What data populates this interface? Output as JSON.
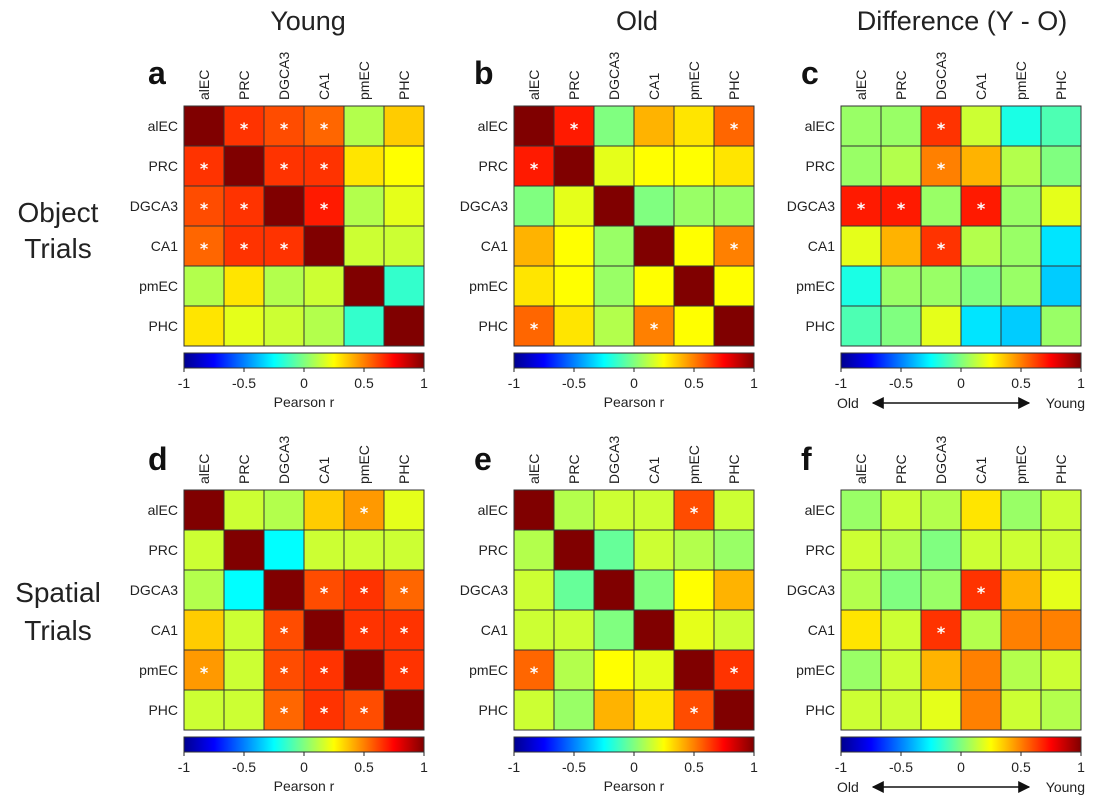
{
  "column_titles": [
    "Young",
    "Old",
    "Difference (Y - O)"
  ],
  "row_titles": [
    [
      "Object",
      "Trials"
    ],
    [
      "Spatial",
      "Trials"
    ]
  ],
  "colors": {
    "grid_line": "#333333",
    "star": "#ffffff"
  },
  "chart_data": [
    {
      "type": "heatmap",
      "panel": "a",
      "x_categories": [
        "alEC",
        "PRC",
        "DGCA3",
        "CA1",
        "pmEC",
        "PHC"
      ],
      "y_categories": [
        "alEC",
        "PRC",
        "DGCA3",
        "CA1",
        "pmEC",
        "PHC"
      ],
      "values": [
        [
          1.0,
          0.65,
          0.6,
          0.55,
          0.1,
          0.35
        ],
        [
          0.65,
          1.0,
          0.65,
          0.65,
          0.3,
          0.25
        ],
        [
          0.6,
          0.65,
          1.0,
          0.7,
          0.1,
          0.2
        ],
        [
          0.55,
          0.65,
          0.65,
          1.0,
          0.15,
          0.15
        ],
        [
          0.1,
          0.3,
          0.1,
          0.15,
          1.0,
          -0.15
        ],
        [
          0.3,
          0.2,
          0.15,
          0.1,
          -0.15,
          1.0
        ]
      ],
      "significant": [
        [
          0,
          1
        ],
        [
          0,
          2
        ],
        [
          0,
          3
        ],
        [
          1,
          0
        ],
        [
          1,
          2
        ],
        [
          1,
          3
        ],
        [
          2,
          0
        ],
        [
          2,
          1
        ],
        [
          2,
          3
        ],
        [
          3,
          0
        ],
        [
          3,
          1
        ],
        [
          3,
          2
        ]
      ],
      "colorbar": {
        "range": [
          -1,
          1
        ],
        "ticks": [
          "-1",
          "-0.5",
          "0",
          "0.5",
          "1"
        ],
        "label": "Pearson r"
      }
    },
    {
      "type": "heatmap",
      "panel": "b",
      "x_categories": [
        "alEC",
        "PRC",
        "DGCA3",
        "CA1",
        "pmEC",
        "PHC"
      ],
      "y_categories": [
        "alEC",
        "PRC",
        "DGCA3",
        "CA1",
        "pmEC",
        "PHC"
      ],
      "values": [
        [
          1.0,
          0.7,
          0.0,
          0.4,
          0.3,
          0.55
        ],
        [
          0.7,
          1.0,
          0.2,
          0.25,
          0.25,
          0.3
        ],
        [
          0.0,
          0.2,
          1.0,
          0.0,
          0.05,
          0.05
        ],
        [
          0.4,
          0.25,
          0.05,
          1.0,
          0.25,
          0.5
        ],
        [
          0.3,
          0.25,
          0.05,
          0.25,
          1.0,
          0.25
        ],
        [
          0.55,
          0.3,
          0.1,
          0.5,
          0.25,
          1.0
        ]
      ],
      "significant": [
        [
          0,
          1
        ],
        [
          0,
          5
        ],
        [
          1,
          0
        ],
        [
          3,
          5
        ],
        [
          5,
          0
        ],
        [
          5,
          3
        ]
      ],
      "colorbar": {
        "range": [
          -1,
          1
        ],
        "ticks": [
          "-1",
          "-0.5",
          "0",
          "0.5",
          "1"
        ],
        "label": "Pearson r"
      }
    },
    {
      "type": "heatmap",
      "panel": "c",
      "x_categories": [
        "alEC",
        "PRC",
        "DGCA3",
        "CA1",
        "pmEC",
        "PHC"
      ],
      "y_categories": [
        "alEC",
        "PRC",
        "DGCA3",
        "CA1",
        "pmEC",
        "PHC"
      ],
      "values": [
        [
          0.05,
          0.05,
          0.65,
          0.15,
          -0.2,
          -0.1
        ],
        [
          0.05,
          0.1,
          0.5,
          0.4,
          0.1,
          0.0
        ],
        [
          0.7,
          0.7,
          0.05,
          0.7,
          0.05,
          0.2
        ],
        [
          0.2,
          0.4,
          0.65,
          0.1,
          0.05,
          -0.3
        ],
        [
          -0.2,
          0.05,
          0.05,
          0.0,
          0.05,
          -0.35
        ],
        [
          -0.1,
          0.0,
          0.2,
          -0.3,
          -0.35,
          0.05
        ]
      ],
      "significant": [
        [
          0,
          2
        ],
        [
          1,
          2
        ],
        [
          2,
          0
        ],
        [
          2,
          1
        ],
        [
          2,
          3
        ],
        [
          3,
          2
        ]
      ],
      "colorbar": {
        "range": [
          -1,
          1
        ],
        "ticks": [
          "-1",
          "-0.5",
          "0",
          "0.5",
          "1"
        ],
        "left_label": "Old",
        "right_label": "Young"
      }
    },
    {
      "type": "heatmap",
      "panel": "d",
      "x_categories": [
        "alEC",
        "PRC",
        "DGCA3",
        "CA1",
        "pmEC",
        "PHC"
      ],
      "y_categories": [
        "alEC",
        "PRC",
        "DGCA3",
        "CA1",
        "pmEC",
        "PHC"
      ],
      "values": [
        [
          1.0,
          0.15,
          0.1,
          0.35,
          0.45,
          0.2
        ],
        [
          0.15,
          1.0,
          -0.25,
          0.15,
          0.15,
          0.15
        ],
        [
          0.1,
          -0.25,
          1.0,
          0.6,
          0.65,
          0.55
        ],
        [
          0.35,
          0.15,
          0.6,
          1.0,
          0.65,
          0.65
        ],
        [
          0.45,
          0.15,
          0.6,
          0.65,
          1.0,
          0.65
        ],
        [
          0.15,
          0.15,
          0.55,
          0.65,
          0.6,
          1.0
        ]
      ],
      "significant": [
        [
          0,
          4
        ],
        [
          2,
          3
        ],
        [
          2,
          4
        ],
        [
          2,
          5
        ],
        [
          3,
          2
        ],
        [
          3,
          4
        ],
        [
          3,
          5
        ],
        [
          4,
          0
        ],
        [
          4,
          2
        ],
        [
          4,
          3
        ],
        [
          4,
          5
        ],
        [
          5,
          2
        ],
        [
          5,
          3
        ],
        [
          5,
          4
        ]
      ],
      "colorbar": {
        "range": [
          -1,
          1
        ],
        "ticks": [
          "-1",
          "-0.5",
          "0",
          "0.5",
          "1"
        ],
        "label": "Pearson r"
      }
    },
    {
      "type": "heatmap",
      "panel": "e",
      "x_categories": [
        "alEC",
        "PRC",
        "DGCA3",
        "CA1",
        "pmEC",
        "PHC"
      ],
      "y_categories": [
        "alEC",
        "PRC",
        "DGCA3",
        "CA1",
        "pmEC",
        "PHC"
      ],
      "values": [
        [
          1.0,
          0.1,
          0.15,
          0.15,
          0.6,
          0.15
        ],
        [
          0.1,
          1.0,
          -0.05,
          0.15,
          0.1,
          0.05
        ],
        [
          0.15,
          -0.05,
          1.0,
          0.0,
          0.25,
          0.4
        ],
        [
          0.15,
          0.15,
          0.0,
          1.0,
          0.2,
          0.15
        ],
        [
          0.55,
          0.1,
          0.25,
          0.2,
          1.0,
          0.65
        ],
        [
          0.15,
          0.05,
          0.4,
          0.3,
          0.6,
          1.0
        ]
      ],
      "significant": [
        [
          0,
          4
        ],
        [
          4,
          0
        ],
        [
          4,
          5
        ],
        [
          5,
          4
        ]
      ],
      "colorbar": {
        "range": [
          -1,
          1
        ],
        "ticks": [
          "-1",
          "-0.5",
          "0",
          "0.5",
          "1"
        ],
        "label": "Pearson r"
      }
    },
    {
      "type": "heatmap",
      "panel": "f",
      "x_categories": [
        "alEC",
        "PRC",
        "DGCA3",
        "CA1",
        "pmEC",
        "PHC"
      ],
      "y_categories": [
        "alEC",
        "PRC",
        "DGCA3",
        "CA1",
        "pmEC",
        "PHC"
      ],
      "values": [
        [
          0.05,
          0.15,
          0.1,
          0.3,
          0.05,
          0.15
        ],
        [
          0.15,
          0.1,
          0.0,
          0.15,
          0.15,
          0.15
        ],
        [
          0.1,
          0.0,
          0.05,
          0.65,
          0.4,
          0.2
        ],
        [
          0.3,
          0.15,
          0.65,
          0.1,
          0.5,
          0.5
        ],
        [
          0.05,
          0.15,
          0.4,
          0.5,
          0.1,
          0.15
        ],
        [
          0.15,
          0.15,
          0.2,
          0.5,
          0.15,
          0.1
        ]
      ],
      "significant": [
        [
          2,
          3
        ],
        [
          3,
          2
        ]
      ],
      "colorbar": {
        "range": [
          -1,
          1
        ],
        "ticks": [
          "-1",
          "-0.5",
          "0",
          "0.5",
          "1"
        ],
        "left_label": "Old",
        "right_label": "Young"
      }
    }
  ]
}
